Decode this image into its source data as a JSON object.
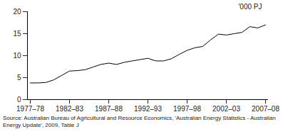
{
  "chart_data": {
    "type": "line",
    "y_label": "'000 PJ",
    "caption": "Source: Australian Bureau of Agricultural and Resource Economics, 'Australian Energy Statistics - Australian Energy Update', 2009, Table J",
    "categories": [
      "1977–78",
      null,
      null,
      null,
      null,
      "1982–83",
      null,
      null,
      null,
      null,
      "1987–88",
      null,
      null,
      null,
      null,
      "1992–93",
      null,
      null,
      null,
      null,
      "1997–98",
      null,
      null,
      null,
      null,
      "2002–03",
      null,
      null,
      null,
      null,
      "2007–08"
    ],
    "values": [
      3.8,
      3.8,
      3.9,
      4.5,
      5.5,
      6.5,
      6.6,
      6.8,
      7.4,
      8.0,
      8.3,
      8.0,
      8.5,
      8.8,
      9.1,
      9.4,
      8.8,
      8.8,
      9.3,
      10.3,
      11.2,
      11.8,
      12.1,
      13.6,
      14.9,
      14.7,
      15.0,
      15.3,
      16.6,
      16.3,
      17.0
    ],
    "color": "#000000",
    "ylim": [
      0,
      20
    ],
    "yticks": [
      0,
      5,
      10,
      15,
      20
    ],
    "grid": false
  }
}
